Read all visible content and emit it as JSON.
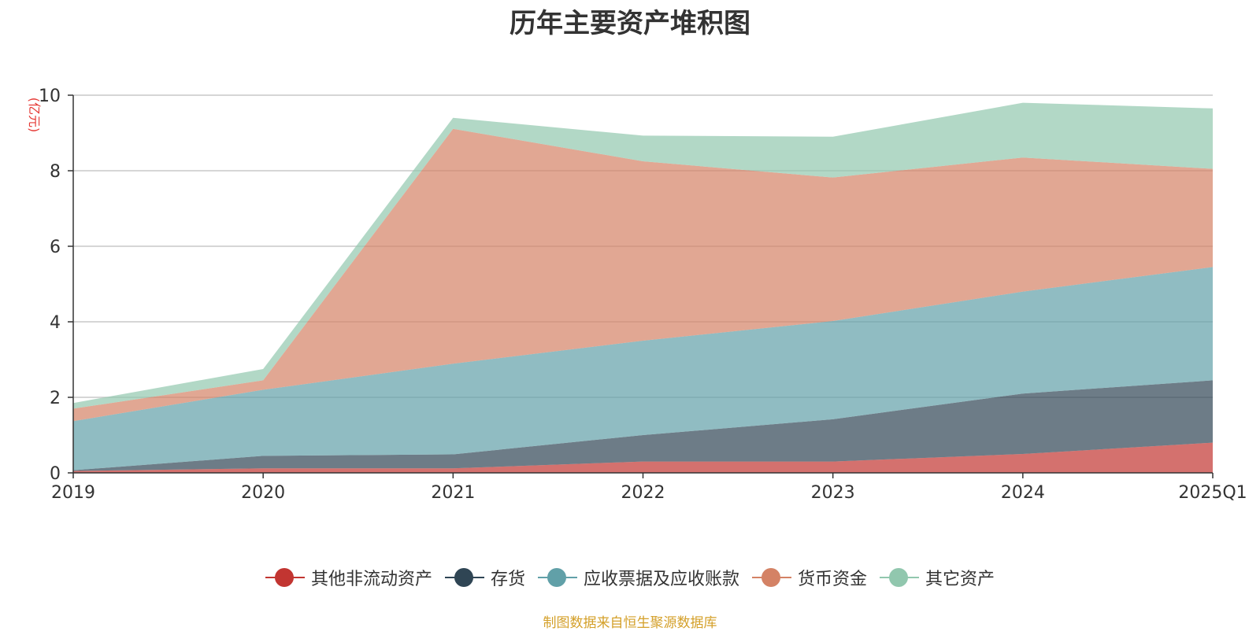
{
  "chart_data": {
    "type": "area",
    "stacked": true,
    "title": "历年主要资产堆积图",
    "unit_label": "(亿元)",
    "categories": [
      "2019",
      "2020",
      "2021",
      "2022",
      "2023",
      "2024",
      "2025Q1"
    ],
    "ylim": [
      0,
      10
    ],
    "yticks": [
      0,
      2,
      4,
      6,
      8,
      10
    ],
    "grid": true,
    "legend_position": "bottom",
    "series": [
      {
        "name": "其他非流动资产",
        "color": "#c23531",
        "values": [
          0.05,
          0.12,
          0.12,
          0.3,
          0.3,
          0.5,
          0.8
        ]
      },
      {
        "name": "存货",
        "color": "#2f4554",
        "values": [
          0.02,
          0.33,
          0.37,
          0.7,
          1.12,
          1.6,
          1.65
        ]
      },
      {
        "name": "应收票据及应收账款",
        "color": "#61a0a8",
        "values": [
          1.3,
          1.75,
          2.4,
          2.5,
          2.6,
          2.7,
          3.0
        ]
      },
      {
        "name": "货币资金",
        "color": "#d48265",
        "values": [
          0.33,
          0.25,
          6.22,
          4.75,
          3.8,
          3.55,
          2.6
        ]
      },
      {
        "name": "其它资产",
        "color": "#91c7ae",
        "values": [
          0.15,
          0.3,
          0.29,
          0.68,
          1.08,
          1.45,
          1.6
        ]
      }
    ]
  },
  "source_note": "制图数据来自恒生聚源数据库"
}
